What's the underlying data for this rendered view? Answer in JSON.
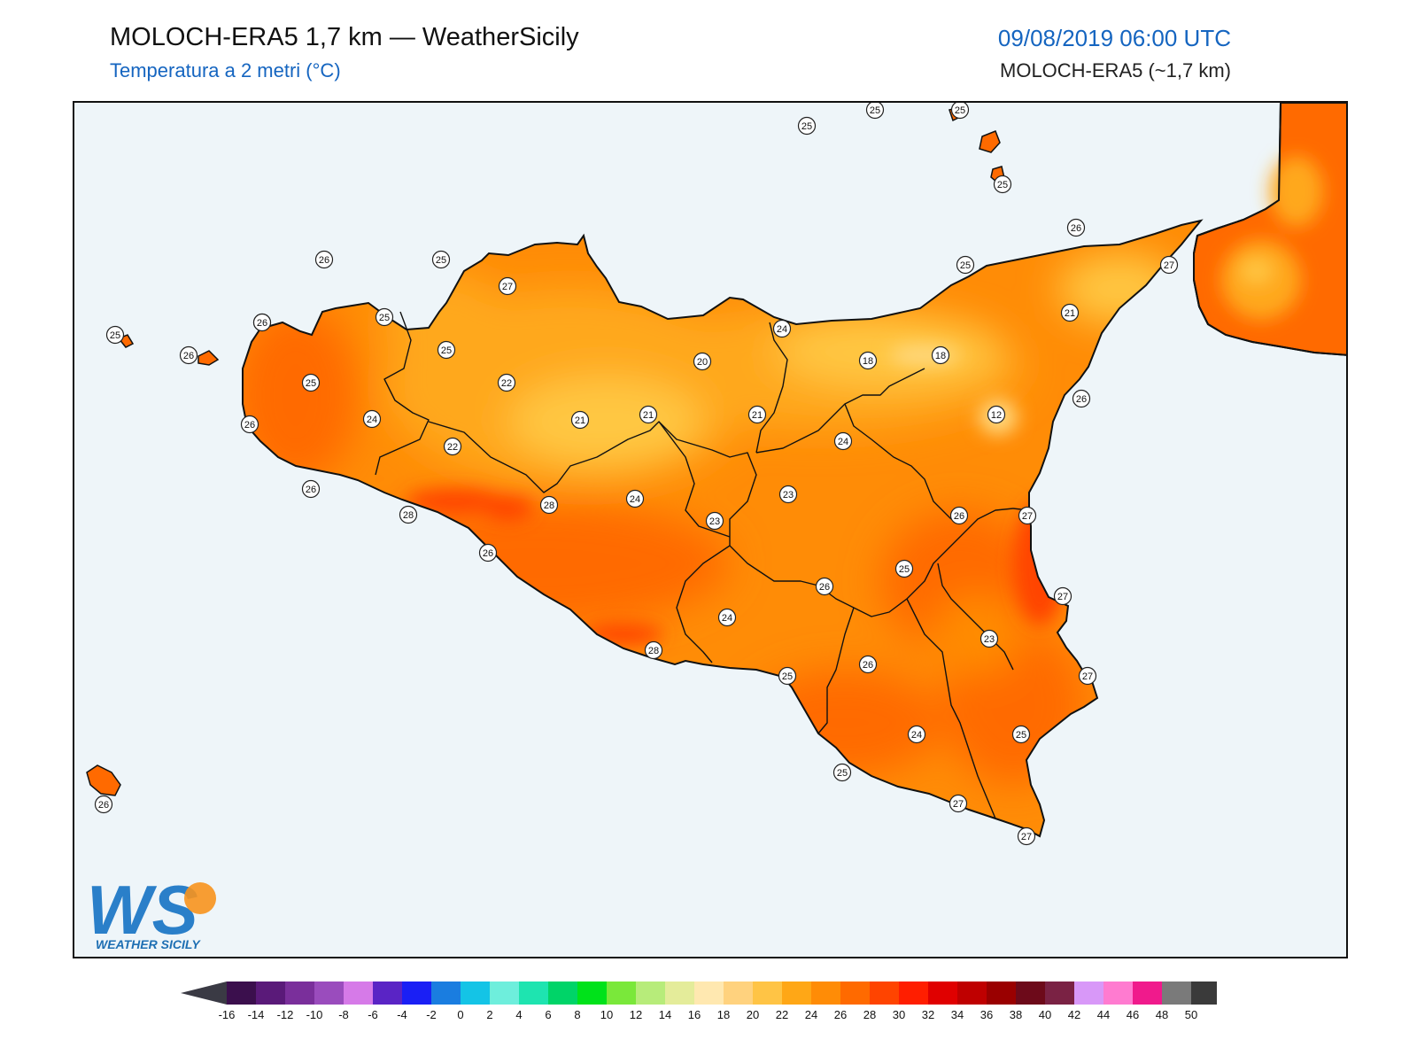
{
  "header": {
    "title": "MOLOCH-ERA5 1,7 km — WeatherSicily",
    "subtitle": "Temperatura a 2 metri (°C)",
    "datetime": "09/08/2019 06:00 UTC",
    "model": "MOLOCH-ERA5 (~1,7 km)"
  },
  "logo": {
    "mark": "WS",
    "text": "WEATHER SICILY"
  },
  "colors": {
    "sea": "#eef5f9",
    "temp_18_20": "#ffd87e",
    "temp_20_22": "#ffc742",
    "temp_22_24": "#ffa81b",
    "temp_24_26": "#ff8c06",
    "temp_26_28": "#ff6a00",
    "temp_28_30": "#ff4400",
    "border": "#111111"
  },
  "colorbar": {
    "ticks": [
      "-16",
      "-14",
      "-12",
      "-10",
      "-8",
      "-6",
      "-4",
      "-2",
      "0",
      "2",
      "4",
      "6",
      "8",
      "10",
      "12",
      "14",
      "16",
      "18",
      "20",
      "22",
      "24",
      "26",
      "28",
      "30",
      "32",
      "34",
      "36",
      "38",
      "40",
      "42",
      "44",
      "46",
      "48",
      "50"
    ],
    "colors": [
      "#3b0f4d",
      "#5a1a79",
      "#7a2f9b",
      "#9a4cbd",
      "#d67ae8",
      "#5a24c5",
      "#1a1ff5",
      "#1a7de0",
      "#14c4e6",
      "#6eeedc",
      "#1ee4b0",
      "#00d468",
      "#00e21a",
      "#7ae83a",
      "#b7ec7a",
      "#e4ec9a",
      "#ffe8b0",
      "#ffd27e",
      "#ffc445",
      "#ffa716",
      "#ff8c06",
      "#ff6a00",
      "#ff4400",
      "#ff1e00",
      "#e00000",
      "#bf0000",
      "#9a0000",
      "#6d0a1a",
      "#7a2244",
      "#d898f8",
      "#ff7bd0",
      "#f01a8c",
      "#7a7a7a",
      "#3a3a3a"
    ]
  },
  "stations": [
    {
      "value": "25"
    },
    {
      "value": "25"
    },
    {
      "value": "25"
    },
    {
      "value": "25"
    },
    {
      "value": "26"
    },
    {
      "value": "25"
    },
    {
      "value": "27"
    },
    {
      "value": "26"
    },
    {
      "value": "25"
    },
    {
      "value": "27"
    },
    {
      "value": "26"
    },
    {
      "value": "25"
    },
    {
      "value": "25"
    },
    {
      "value": "26"
    },
    {
      "value": "24"
    },
    {
      "value": "21"
    },
    {
      "value": "20"
    },
    {
      "value": "18"
    },
    {
      "value": "18"
    },
    {
      "value": "26"
    },
    {
      "value": "12"
    },
    {
      "value": "25"
    },
    {
      "value": "22"
    },
    {
      "value": "21"
    },
    {
      "value": "21"
    },
    {
      "value": "21"
    },
    {
      "value": "24"
    },
    {
      "value": "26"
    },
    {
      "value": "24"
    },
    {
      "value": "22"
    },
    {
      "value": "25"
    },
    {
      "value": "26"
    },
    {
      "value": "28"
    },
    {
      "value": "28"
    },
    {
      "value": "24"
    },
    {
      "value": "23"
    },
    {
      "value": "23"
    },
    {
      "value": "26"
    },
    {
      "value": "27"
    },
    {
      "value": "26"
    },
    {
      "value": "26"
    },
    {
      "value": "25"
    },
    {
      "value": "26"
    },
    {
      "value": "27"
    },
    {
      "value": "24"
    },
    {
      "value": "28"
    },
    {
      "value": "23"
    },
    {
      "value": "25"
    },
    {
      "value": "26"
    },
    {
      "value": "27"
    },
    {
      "value": "24"
    },
    {
      "value": "25"
    },
    {
      "value": "25"
    },
    {
      "value": "27"
    },
    {
      "value": "27"
    },
    {
      "value": "26"
    }
  ]
}
